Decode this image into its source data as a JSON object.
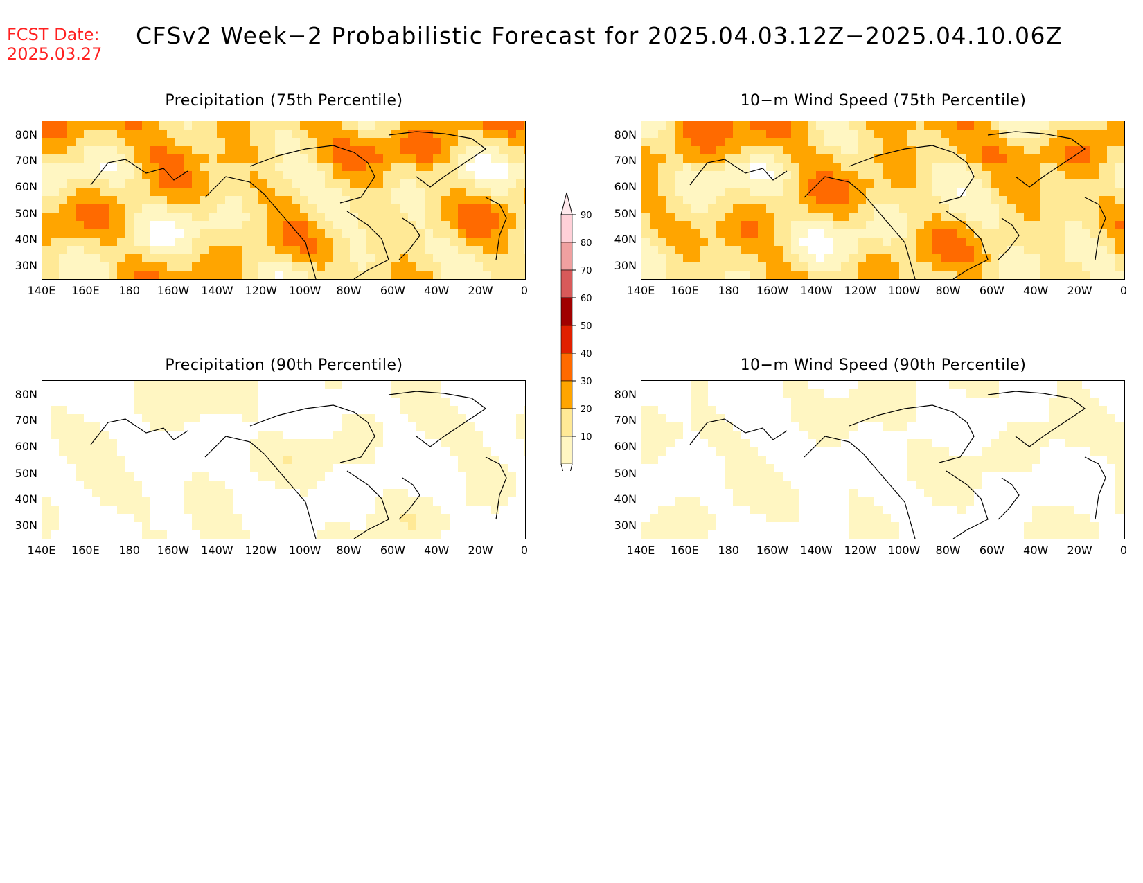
{
  "forecast_date": {
    "label": "FCST Date:",
    "value": "2025.03.27"
  },
  "title": "CFSv2 Week−2 Probabilistic Forecast for 2025.04.03.12Z−2025.04.10.06Z",
  "panels": [
    {
      "title": "Precipitation (75th Percentile)",
      "intensity": 2
    },
    {
      "title": "10−m Wind Speed (75th Percentile)",
      "intensity": 2
    },
    {
      "title": "Precipitation (90th Percentile)",
      "intensity": 0
    },
    {
      "title": "10−m Wind Speed (90th Percentile)",
      "intensity": 0
    }
  ],
  "map_axes": {
    "lat_ticks": [
      "80N",
      "70N",
      "60N",
      "50N",
      "40N",
      "30N"
    ],
    "lon_ticks": [
      "140E",
      "160E",
      "180",
      "160W",
      "140W",
      "120W",
      "100W",
      "80W",
      "60W",
      "40W",
      "20W",
      "0"
    ]
  },
  "colorbar": {
    "levels": [
      "10",
      "20",
      "30",
      "40",
      "50",
      "60",
      "70",
      "80",
      "90"
    ],
    "colors": [
      "#fff6c2",
      "#ffe996",
      "#ffa500",
      "#ff6a00",
      "#e02000",
      "#a00000",
      "#d85a5a",
      "#f0a0a0",
      "#ffd0d8"
    ]
  }
}
